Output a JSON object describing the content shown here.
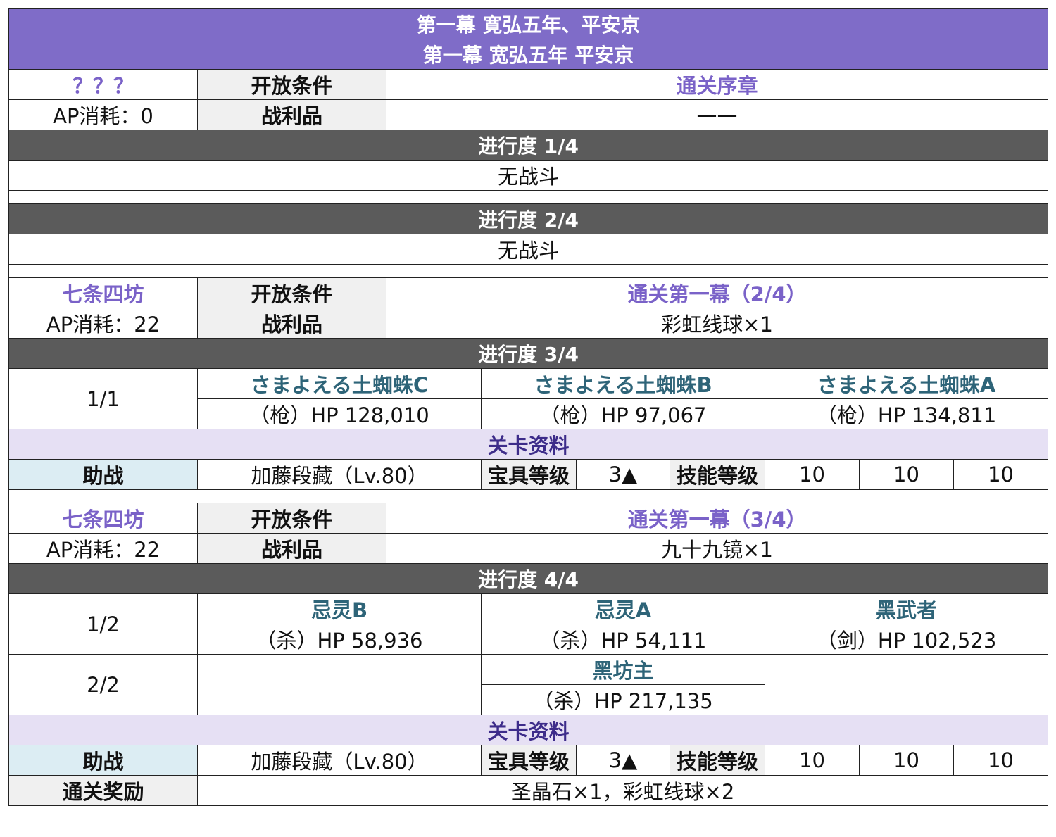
{
  "title1": "第一幕 寛弘五年、平安京",
  "title2": "第一幕 宽弘五年 平安京",
  "labels": {
    "open": "开放条件",
    "loot": "战利品",
    "info": "关卡资料",
    "support": "助战",
    "np": "宝具等级",
    "skill": "技能等级",
    "reward": "通关奖励"
  },
  "q1": {
    "name": "？？？",
    "ap": "AP消耗：0",
    "cond": "通关序章",
    "loot": "——"
  },
  "p1": {
    "title": "进行度 1/4",
    "text": "无战斗"
  },
  "p2": {
    "title": "进行度 2/4",
    "text": "无战斗"
  },
  "q3": {
    "name": "七条四坊",
    "ap": "AP消耗：22",
    "cond": "通关第一幕（2/4）",
    "loot": "彩虹线球×1"
  },
  "p3": {
    "title": "进行度 3/4",
    "wave": "1/1",
    "enemies": [
      {
        "name": "さまよえる土蜘蛛C",
        "hp": "（枪）HP 128,010"
      },
      {
        "name": "さまよえる土蜘蛛B",
        "hp": "（枪）HP 97,067"
      },
      {
        "name": "さまよえる土蜘蛛A",
        "hp": "（枪）HP 134,811"
      }
    ],
    "support": "加藤段藏（Lv.80）",
    "np": "3▲",
    "skills": [
      "10",
      "10",
      "10"
    ]
  },
  "q4": {
    "name": "七条四坊",
    "ap": "AP消耗：22",
    "cond": "通关第一幕（3/4）",
    "loot": "九十九镜×1"
  },
  "p4": {
    "title": "进行度 4/4",
    "wave1": "1/2",
    "wave2": "2/2",
    "enemies": [
      {
        "name": "忌灵B",
        "hp": "（杀）HP 58,936"
      },
      {
        "name": "忌灵A",
        "hp": "（杀）HP 54,111"
      },
      {
        "name": "黑武者",
        "hp": "（剑）HP 102,523"
      }
    ],
    "boss": {
      "name": "黑坊主",
      "hp": "（杀）HP 217,135"
    },
    "support": "加藤段藏（Lv.80）",
    "np": "3▲",
    "skills": [
      "10",
      "10",
      "10"
    ],
    "reward": "圣晶石×1，彩虹线球×2"
  }
}
